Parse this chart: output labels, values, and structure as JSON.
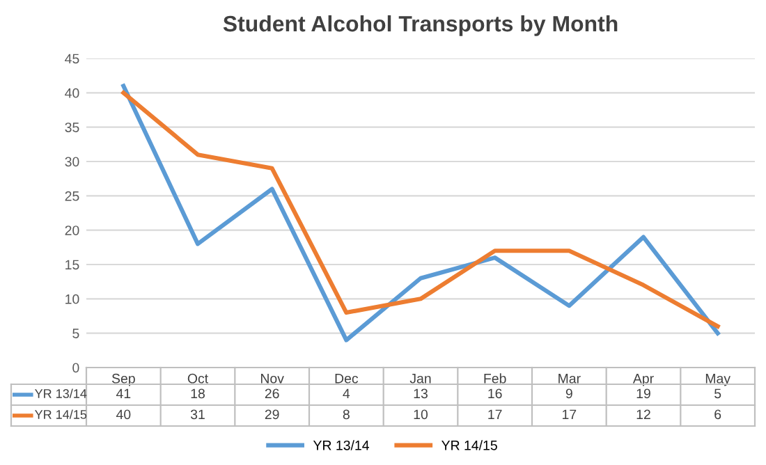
{
  "chart_data": {
    "type": "line",
    "title": "Student Alcohol Transports by Month",
    "categories": [
      "Sep",
      "Oct",
      "Nov",
      "Dec",
      "Jan",
      "Feb",
      "Mar",
      "Apr",
      "May"
    ],
    "series": [
      {
        "name": "YR 13/14",
        "color": "#5b9bd5",
        "values": [
          41,
          18,
          26,
          4,
          13,
          16,
          9,
          19,
          5
        ]
      },
      {
        "name": "YR 14/15",
        "color": "#ed7d31",
        "values": [
          40,
          31,
          29,
          8,
          10,
          17,
          17,
          12,
          6
        ]
      }
    ],
    "ylim": [
      0,
      45
    ],
    "yticks": [
      0,
      5,
      10,
      15,
      20,
      25,
      30,
      35,
      40,
      45
    ],
    "grid": "y",
    "legend": "bottom",
    "data_labels": true,
    "marker": "none",
    "line_style": "solid"
  }
}
